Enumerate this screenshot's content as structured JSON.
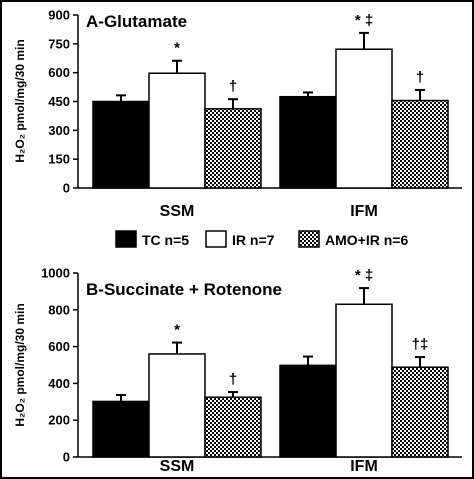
{
  "chart_data": [
    {
      "type": "bar",
      "title": "A-Glutamate",
      "ylabel": "H₂O₂ pmol/mg/30 min",
      "categories": [
        "SSM",
        "IFM"
      ],
      "ylim": [
        0,
        900
      ],
      "yticks": [
        "0",
        "150",
        "300",
        "450",
        "600",
        "750",
        "900"
      ],
      "series": [
        {
          "name": "TC n=5",
          "values": [
            450,
            475
          ],
          "errors": [
            32,
            22
          ]
        },
        {
          "name": "IR n=7",
          "values": [
            597,
            722
          ],
          "errors": [
            65,
            85
          ]
        },
        {
          "name": "AMO+IR n=6",
          "values": [
            412,
            455
          ],
          "errors": [
            50,
            55
          ]
        }
      ],
      "annotations": [
        [
          "",
          "",
          ""
        ],
        [
          "*",
          "* ‡",
          ""
        ],
        [
          "†",
          "†",
          ""
        ]
      ]
    },
    {
      "type": "bar",
      "title": "B-Succinate + Rotenone",
      "ylabel": "H₂O₂ pmol/mg/30 min",
      "categories": [
        "SSM",
        "IFM"
      ],
      "ylim": [
        0,
        1000
      ],
      "yticks": [
        "0",
        "200",
        "400",
        "600",
        "800",
        "1000"
      ],
      "series": [
        {
          "name": "TC n=5",
          "values": [
            302,
            498
          ],
          "errors": [
            35,
            48
          ]
        },
        {
          "name": "IR n=7",
          "values": [
            560,
            830
          ],
          "errors": [
            62,
            88
          ]
        },
        {
          "name": "AMO+IR n=6",
          "values": [
            325,
            488
          ],
          "errors": [
            28,
            55
          ]
        }
      ],
      "annotations": [
        [
          "",
          "",
          ""
        ],
        [
          "*",
          "* ‡",
          ""
        ],
        [
          "†",
          "†‡",
          ""
        ]
      ]
    }
  ],
  "legend": [
    {
      "label": "TC n=5",
      "fill": "#000000"
    },
    {
      "label": "IR n=7",
      "fill": "#ffffff"
    },
    {
      "label": "AMO+IR n=6",
      "fill": "checker"
    }
  ]
}
